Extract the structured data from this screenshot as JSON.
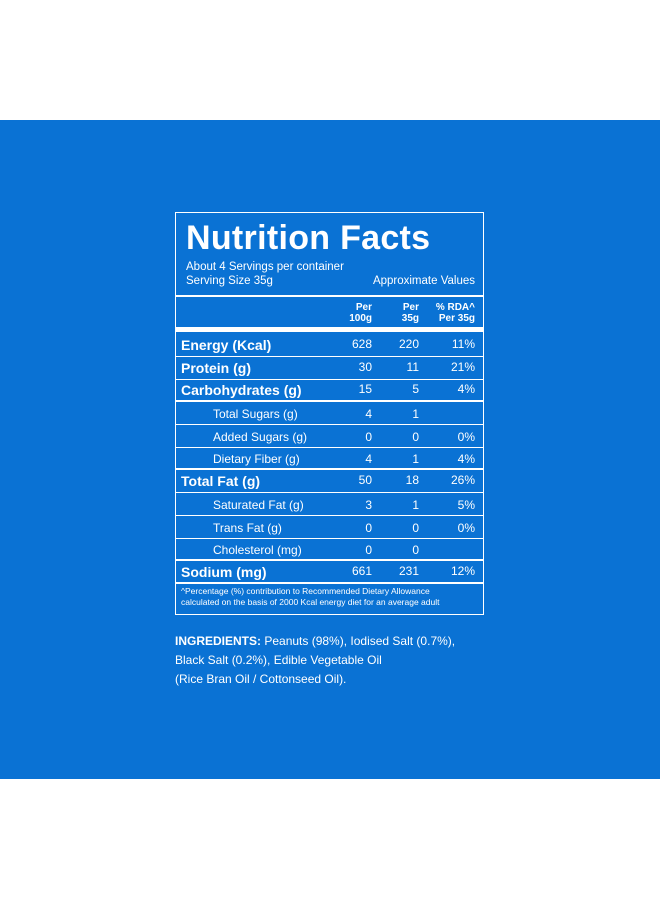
{
  "colors": {
    "panel_bg": "#0a72d4",
    "text": "#ffffff",
    "page_bg": "#ffffff"
  },
  "label": {
    "title": "Nutrition Facts",
    "servings_per_container": "About 4 Servings per container",
    "serving_size": "Serving Size 35g",
    "approximate": "Approximate Values",
    "headers": {
      "per100_l1": "Per",
      "per100_l2": "100g",
      "per35_l1": "Per",
      "per35_l2": "35g",
      "rda_l1": "% RDA^",
      "rda_l2": "Per 35g"
    },
    "rows": [
      {
        "name": "Energy (Kcal)",
        "per100": "628",
        "per35": "220",
        "rda": "11%"
      },
      {
        "name": "Protein (g)",
        "per100": "30",
        "per35": "11",
        "rda": "21%"
      },
      {
        "name": "Carbohydrates (g)",
        "per100": "15",
        "per35": "5",
        "rda": "4%"
      },
      {
        "name": "Total Sugars (g)",
        "per100": "4",
        "per35": "1",
        "rda": ""
      },
      {
        "name": "Added Sugars (g)",
        "per100": "0",
        "per35": "0",
        "rda": "0%"
      },
      {
        "name": "Dietary Fiber (g)",
        "per100": "4",
        "per35": "1",
        "rda": "4%"
      },
      {
        "name": "Total Fat (g)",
        "per100": "50",
        "per35": "18",
        "rda": "26%"
      },
      {
        "name": "Saturated Fat (g)",
        "per100": "3",
        "per35": "1",
        "rda": "5%"
      },
      {
        "name": "Trans Fat (g)",
        "per100": "0",
        "per35": "0",
        "rda": "0%"
      },
      {
        "name": "Cholesterol (mg)",
        "per100": "0",
        "per35": "0",
        "rda": ""
      },
      {
        "name": "Sodium (mg)",
        "per100": "661",
        "per35": "231",
        "rda": "12%"
      }
    ],
    "footnote_line1": "^Percentage (%) contribution to Recommended Dietary Allowance",
    "footnote_line2": "calculated on the basis of 2000 Kcal energy diet for an average adult"
  },
  "ingredients": {
    "heading": "INGREDIENTS:",
    "line1_rest": " Peanuts (98%), Iodised Salt (0.7%),",
    "line2": "Black Salt (0.2%), Edible Vegetable Oil",
    "line3": "(Rice Bran Oil / Cottonseed Oil)."
  }
}
